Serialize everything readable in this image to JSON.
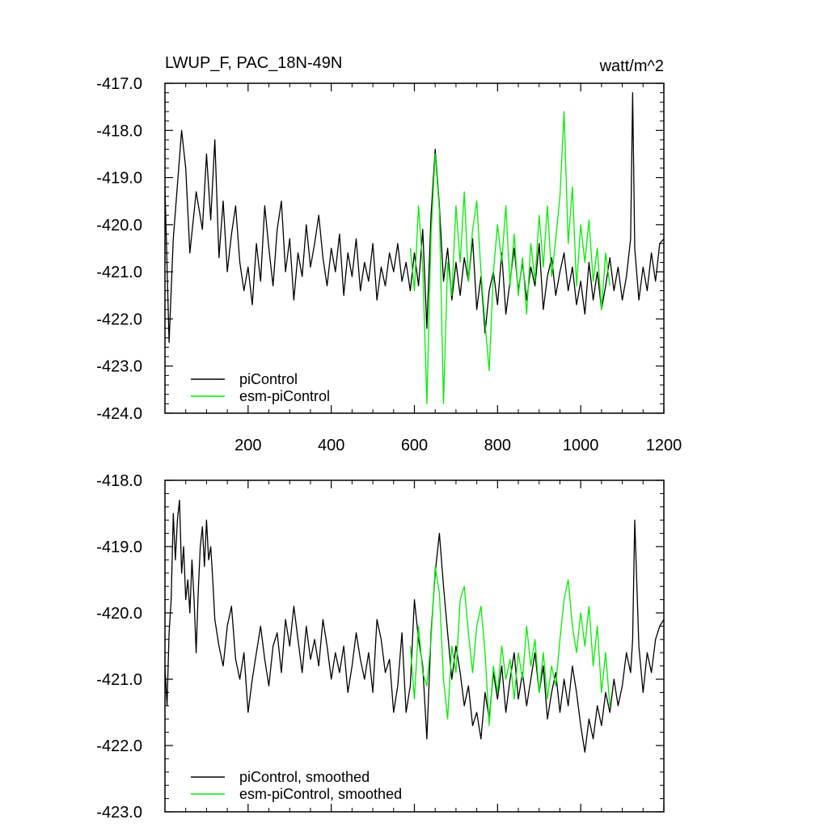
{
  "colors": {
    "piControl": "#000000",
    "esm_piControl": "#00ee00",
    "axis": "#000000"
  },
  "chart_data": [
    {
      "type": "line",
      "title": "LWUP_F, PAC_18N-49N",
      "units_label": "watt/m^2",
      "xlim": [
        0,
        1200
      ],
      "ylim": [
        -424.0,
        -417.0
      ],
      "xticks": [
        200,
        400,
        600,
        800,
        1000,
        1200
      ],
      "xtick_labels": [
        "200",
        "400",
        "600",
        "800",
        "1000",
        "1200"
      ],
      "yticks": [
        -424.0,
        -423.0,
        -422.0,
        -421.0,
        -420.0,
        -419.0,
        -418.0,
        -417.0
      ],
      "ytick_labels": [
        "-424.0",
        "-423.0",
        "-422.0",
        "-421.0",
        "-420.0",
        "-419.0",
        "-418.0",
        "-417.0"
      ],
      "legend_position": "bottom-left",
      "series": [
        {
          "name": "piControl",
          "x": [
            0,
            10,
            20,
            40,
            50,
            60,
            75,
            90,
            100,
            110,
            120,
            130,
            140,
            150,
            160,
            170,
            180,
            190,
            200,
            210,
            220,
            230,
            240,
            250,
            260,
            270,
            280,
            290,
            300,
            310,
            320,
            330,
            340,
            350,
            360,
            370,
            380,
            390,
            400,
            410,
            420,
            430,
            440,
            450,
            460,
            470,
            480,
            490,
            500,
            510,
            520,
            530,
            540,
            550,
            560,
            570,
            580,
            590,
            600,
            610,
            620,
            630,
            640,
            650,
            660,
            670,
            680,
            690,
            700,
            710,
            720,
            730,
            740,
            750,
            760,
            770,
            780,
            790,
            800,
            810,
            820,
            830,
            840,
            850,
            860,
            870,
            880,
            890,
            900,
            910,
            920,
            930,
            940,
            950,
            960,
            970,
            980,
            990,
            1000,
            1010,
            1020,
            1030,
            1040,
            1050,
            1060,
            1070,
            1080,
            1090,
            1100,
            1110,
            1120,
            1125,
            1130,
            1140,
            1150,
            1160,
            1170,
            1180,
            1190,
            1200
          ],
          "y": [
            -419.2,
            -422.5,
            -420.3,
            -418.0,
            -418.8,
            -420.6,
            -419.3,
            -420.1,
            -418.5,
            -419.9,
            -418.2,
            -420.7,
            -419.5,
            -421.0,
            -420.2,
            -419.6,
            -420.8,
            -421.4,
            -420.9,
            -421.7,
            -420.4,
            -421.2,
            -419.6,
            -420.5,
            -421.3,
            -420.1,
            -419.5,
            -421.0,
            -420.3,
            -421.6,
            -420.6,
            -421.1,
            -420.0,
            -420.9,
            -420.4,
            -419.8,
            -420.7,
            -421.3,
            -420.5,
            -421.0,
            -420.2,
            -421.5,
            -420.6,
            -421.1,
            -420.3,
            -421.4,
            -420.8,
            -421.2,
            -420.4,
            -421.6,
            -420.9,
            -421.3,
            -420.6,
            -421.0,
            -420.4,
            -421.2,
            -420.8,
            -421.4,
            -420.6,
            -421.3,
            -420.1,
            -422.2,
            -419.8,
            -418.4,
            -419.6,
            -421.2,
            -420.5,
            -421.6,
            -420.8,
            -421.5,
            -420.7,
            -421.2,
            -420.3,
            -421.8,
            -421.1,
            -422.3,
            -421.4,
            -421.0,
            -421.7,
            -420.6,
            -421.9,
            -421.2,
            -420.5,
            -421.4,
            -420.8,
            -421.6,
            -420.9,
            -421.3,
            -420.4,
            -421.8,
            -421.1,
            -420.7,
            -421.5,
            -421.0,
            -420.6,
            -421.4,
            -420.9,
            -421.7,
            -421.2,
            -421.9,
            -420.8,
            -421.6,
            -421.0,
            -421.8,
            -421.3,
            -420.7,
            -421.4,
            -420.9,
            -421.6,
            -421.1,
            -420.3,
            -417.2,
            -420.5,
            -421.6,
            -420.9,
            -421.4,
            -420.6,
            -421.2,
            -420.4,
            -420.3
          ]
        },
        {
          "name": "esm-piControl",
          "x": [
            590,
            600,
            610,
            620,
            630,
            640,
            650,
            660,
            670,
            680,
            690,
            700,
            710,
            720,
            730,
            740,
            750,
            760,
            770,
            780,
            790,
            800,
            810,
            820,
            830,
            840,
            850,
            860,
            870,
            880,
            890,
            900,
            910,
            920,
            930,
            940,
            950,
            960,
            970,
            980,
            990,
            1000,
            1010,
            1020,
            1030,
            1040,
            1050,
            1060,
            1070
          ],
          "y": [
            -420.5,
            -421.4,
            -419.6,
            -420.9,
            -423.8,
            -420.2,
            -418.5,
            -419.7,
            -423.8,
            -420.8,
            -421.5,
            -419.6,
            -420.8,
            -419.3,
            -421.2,
            -420.1,
            -419.5,
            -421.0,
            -422.1,
            -423.1,
            -421.0,
            -420.0,
            -420.8,
            -419.6,
            -421.3,
            -420.2,
            -421.5,
            -420.7,
            -421.9,
            -420.4,
            -421.2,
            -419.8,
            -420.9,
            -419.6,
            -421.1,
            -420.3,
            -419.4,
            -417.6,
            -420.4,
            -419.2,
            -421.3,
            -420.0,
            -420.8,
            -419.9,
            -421.2,
            -420.5,
            -421.8,
            -420.6,
            -421.3
          ]
        }
      ],
      "legend": [
        "piControl",
        "esm-piControl"
      ]
    },
    {
      "type": "line",
      "title": "",
      "units_label": "",
      "xlim": [
        0,
        1200
      ],
      "ylim": [
        -423.0,
        -418.0
      ],
      "yticks": [
        -423.0,
        -422.0,
        -421.0,
        -420.0,
        -419.0,
        -418.0
      ],
      "ytick_labels": [
        "-423.0",
        "-422.0",
        "-421.0",
        "-420.0",
        "-419.0",
        "-418.0"
      ],
      "legend_position": "bottom-left",
      "series": [
        {
          "name": "piControl, smoothed",
          "x": [
            0,
            5,
            10,
            15,
            20,
            25,
            30,
            35,
            40,
            45,
            50,
            55,
            60,
            65,
            70,
            75,
            80,
            85,
            90,
            95,
            100,
            105,
            110,
            115,
            120,
            130,
            140,
            150,
            160,
            170,
            180,
            190,
            200,
            210,
            220,
            230,
            240,
            250,
            260,
            270,
            280,
            290,
            300,
            310,
            320,
            330,
            340,
            350,
            360,
            370,
            380,
            390,
            400,
            410,
            420,
            430,
            440,
            450,
            460,
            470,
            480,
            490,
            500,
            510,
            520,
            530,
            540,
            550,
            560,
            570,
            580,
            590,
            600,
            610,
            620,
            630,
            640,
            650,
            660,
            670,
            680,
            690,
            700,
            710,
            720,
            730,
            740,
            750,
            760,
            770,
            780,
            790,
            800,
            810,
            820,
            830,
            840,
            850,
            860,
            870,
            880,
            890,
            900,
            910,
            920,
            930,
            940,
            950,
            960,
            970,
            980,
            990,
            1000,
            1010,
            1020,
            1030,
            1040,
            1050,
            1060,
            1070,
            1080,
            1090,
            1100,
            1110,
            1120,
            1125,
            1130,
            1140,
            1150,
            1160,
            1170,
            1180,
            1190,
            1200
          ],
          "y": [
            -420.8,
            -421.4,
            -420.3,
            -419.8,
            -418.5,
            -419.2,
            -418.6,
            -418.3,
            -419.4,
            -419.0,
            -419.8,
            -419.5,
            -420.0,
            -419.2,
            -419.8,
            -420.6,
            -419.7,
            -419.0,
            -418.7,
            -419.3,
            -418.6,
            -419.2,
            -419.0,
            -419.5,
            -420.1,
            -420.5,
            -420.8,
            -420.2,
            -419.9,
            -420.7,
            -421.0,
            -420.6,
            -421.5,
            -421.0,
            -420.6,
            -420.2,
            -420.7,
            -421.1,
            -420.5,
            -420.3,
            -420.9,
            -420.1,
            -420.5,
            -419.9,
            -420.4,
            -420.9,
            -420.2,
            -420.7,
            -420.4,
            -420.8,
            -420.1,
            -420.5,
            -421.0,
            -420.6,
            -420.9,
            -420.5,
            -421.2,
            -420.8,
            -420.3,
            -420.7,
            -421.0,
            -420.6,
            -421.2,
            -420.1,
            -420.4,
            -420.9,
            -420.7,
            -421.5,
            -421.1,
            -420.3,
            -421.5,
            -421.1,
            -419.8,
            -420.4,
            -420.8,
            -421.9,
            -420.3,
            -419.4,
            -418.8,
            -419.6,
            -420.3,
            -421.0,
            -420.5,
            -420.9,
            -421.4,
            -421.1,
            -421.7,
            -421.5,
            -421.9,
            -421.2,
            -421.6,
            -420.9,
            -421.3,
            -420.8,
            -421.5,
            -421.0,
            -420.6,
            -421.3,
            -420.9,
            -421.4,
            -421.0,
            -420.6,
            -421.2,
            -420.8,
            -421.6,
            -421.2,
            -420.9,
            -421.5,
            -421.0,
            -421.4,
            -420.8,
            -421.2,
            -421.7,
            -422.1,
            -421.6,
            -421.9,
            -421.4,
            -421.7,
            -421.2,
            -421.5,
            -421.0,
            -421.4,
            -421.1,
            -420.6,
            -420.9,
            -420.4,
            -418.6,
            -420.5,
            -421.2,
            -420.6,
            -420.9,
            -420.4,
            -420.2,
            -420.1
          ]
        },
        {
          "name": "esm-piControl, smoothed",
          "x": [
            590,
            600,
            610,
            620,
            630,
            640,
            650,
            660,
            670,
            680,
            690,
            700,
            710,
            720,
            730,
            740,
            750,
            760,
            770,
            780,
            790,
            800,
            810,
            820,
            830,
            840,
            850,
            860,
            870,
            880,
            890,
            900,
            910,
            920,
            930,
            940,
            950,
            960,
            970,
            980,
            990,
            1000,
            1010,
            1020,
            1030,
            1040,
            1050,
            1060,
            1070
          ],
          "y": [
            -420.5,
            -421.3,
            -420.2,
            -420.9,
            -421.1,
            -420.4,
            -419.3,
            -419.7,
            -421.0,
            -421.6,
            -420.5,
            -420.9,
            -419.8,
            -419.6,
            -420.3,
            -420.9,
            -420.2,
            -419.9,
            -420.6,
            -421.7,
            -420.8,
            -421.2,
            -420.5,
            -421.0,
            -420.7,
            -421.3,
            -420.6,
            -421.0,
            -420.2,
            -420.8,
            -420.4,
            -421.2,
            -420.6,
            -421.3,
            -420.8,
            -421.1,
            -420.4,
            -419.8,
            -419.5,
            -420.2,
            -420.6,
            -420.0,
            -420.5,
            -419.9,
            -420.8,
            -420.2,
            -421.2,
            -420.6,
            -421.4
          ]
        }
      ],
      "legend": [
        "piControl, smoothed",
        "esm-piControl, smoothed"
      ]
    }
  ]
}
